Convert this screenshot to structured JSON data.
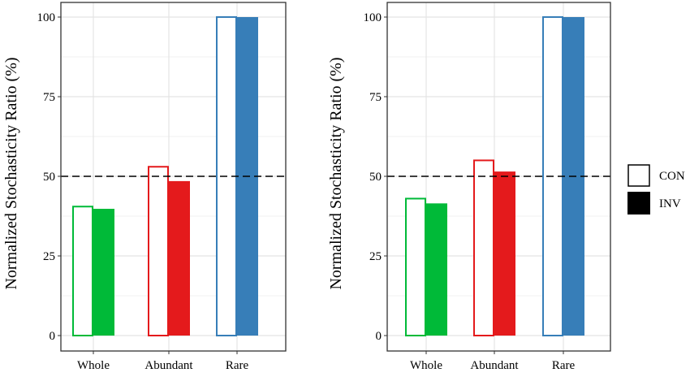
{
  "legend": {
    "entries": [
      {
        "label": "CON",
        "style": "open"
      },
      {
        "label": "INV",
        "style": "filled"
      }
    ],
    "position": "right"
  },
  "reference_line": {
    "y": 50,
    "style": "dashed",
    "color": "#000000"
  },
  "chart_data": [
    {
      "type": "bar",
      "categories": [
        "Whole",
        "Abundant",
        "Rare"
      ],
      "category_colors": [
        "#00BA38",
        "#E41A1C",
        "#377EB8"
      ],
      "series": [
        {
          "name": "CON",
          "style": "open",
          "values": [
            40.5,
            53,
            100
          ]
        },
        {
          "name": "INV",
          "style": "filled",
          "values": [
            39.8,
            48.5,
            100
          ]
        }
      ],
      "ylabel": "Normalized Stochasticity Ratio (%)",
      "xlabel": "",
      "ylim": [
        0,
        100
      ],
      "yticks": [
        0,
        25,
        50,
        75,
        100
      ],
      "grid": true
    },
    {
      "type": "bar",
      "categories": [
        "Whole",
        "Abundant",
        "Rare"
      ],
      "category_colors": [
        "#00BA38",
        "#E41A1C",
        "#377EB8"
      ],
      "series": [
        {
          "name": "CON",
          "style": "open",
          "values": [
            43,
            55,
            100
          ]
        },
        {
          "name": "INV",
          "style": "filled",
          "values": [
            41.5,
            51.5,
            100
          ]
        }
      ],
      "ylabel": "Normalized Stochasticity Ratio (%)",
      "xlabel": "",
      "ylim": [
        0,
        100
      ],
      "yticks": [
        0,
        25,
        50,
        75,
        100
      ],
      "grid": true
    }
  ]
}
